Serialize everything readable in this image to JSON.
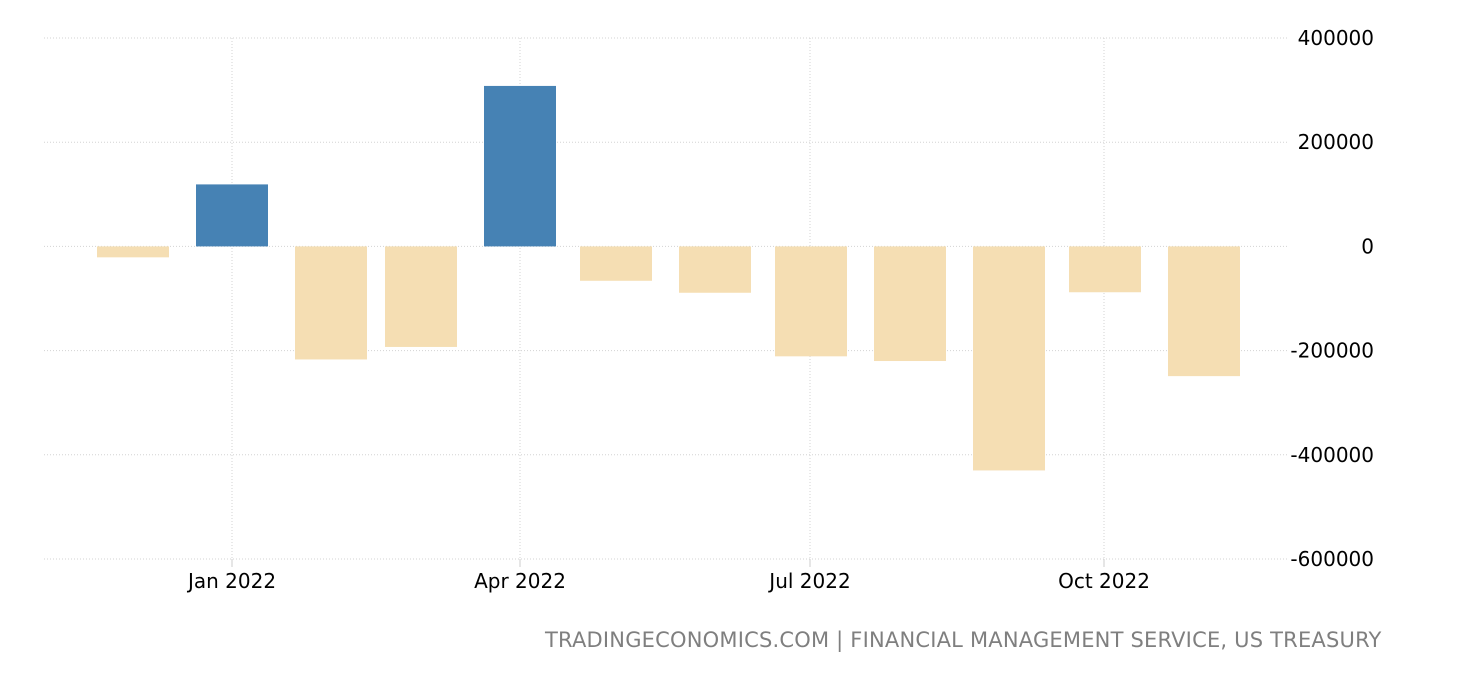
{
  "chart_data": {
    "type": "bar",
    "categories": [
      "Dec 2021",
      "Jan 2022",
      "Feb 2022",
      "Mar 2022",
      "Apr 2022",
      "May 2022",
      "Jun 2022",
      "Jul 2022",
      "Aug 2022",
      "Sep 2022",
      "Oct 2022",
      "Nov 2022"
    ],
    "values": [
      -21000,
      119000,
      -217000,
      -193000,
      308000,
      -66000,
      -89000,
      -211000,
      -220000,
      -430000,
      -88000,
      -249000
    ],
    "x_tick_labels": [
      "Jan 2022",
      "Apr 2022",
      "Jul 2022",
      "Oct 2022"
    ],
    "y_tick_labels": [
      "400000",
      "200000",
      "0",
      "-200000",
      "-400000",
      "-600000"
    ],
    "ylim": [
      -600000,
      400000
    ],
    "grid": true,
    "colors": {
      "positive": "#4682b4",
      "negative": "#f5deb3"
    },
    "title": "",
    "xlabel": "",
    "ylabel": ""
  },
  "source_text": "TRADINGECONOMICS.COM | FINANCIAL MANAGEMENT SERVICE, US TREASURY"
}
